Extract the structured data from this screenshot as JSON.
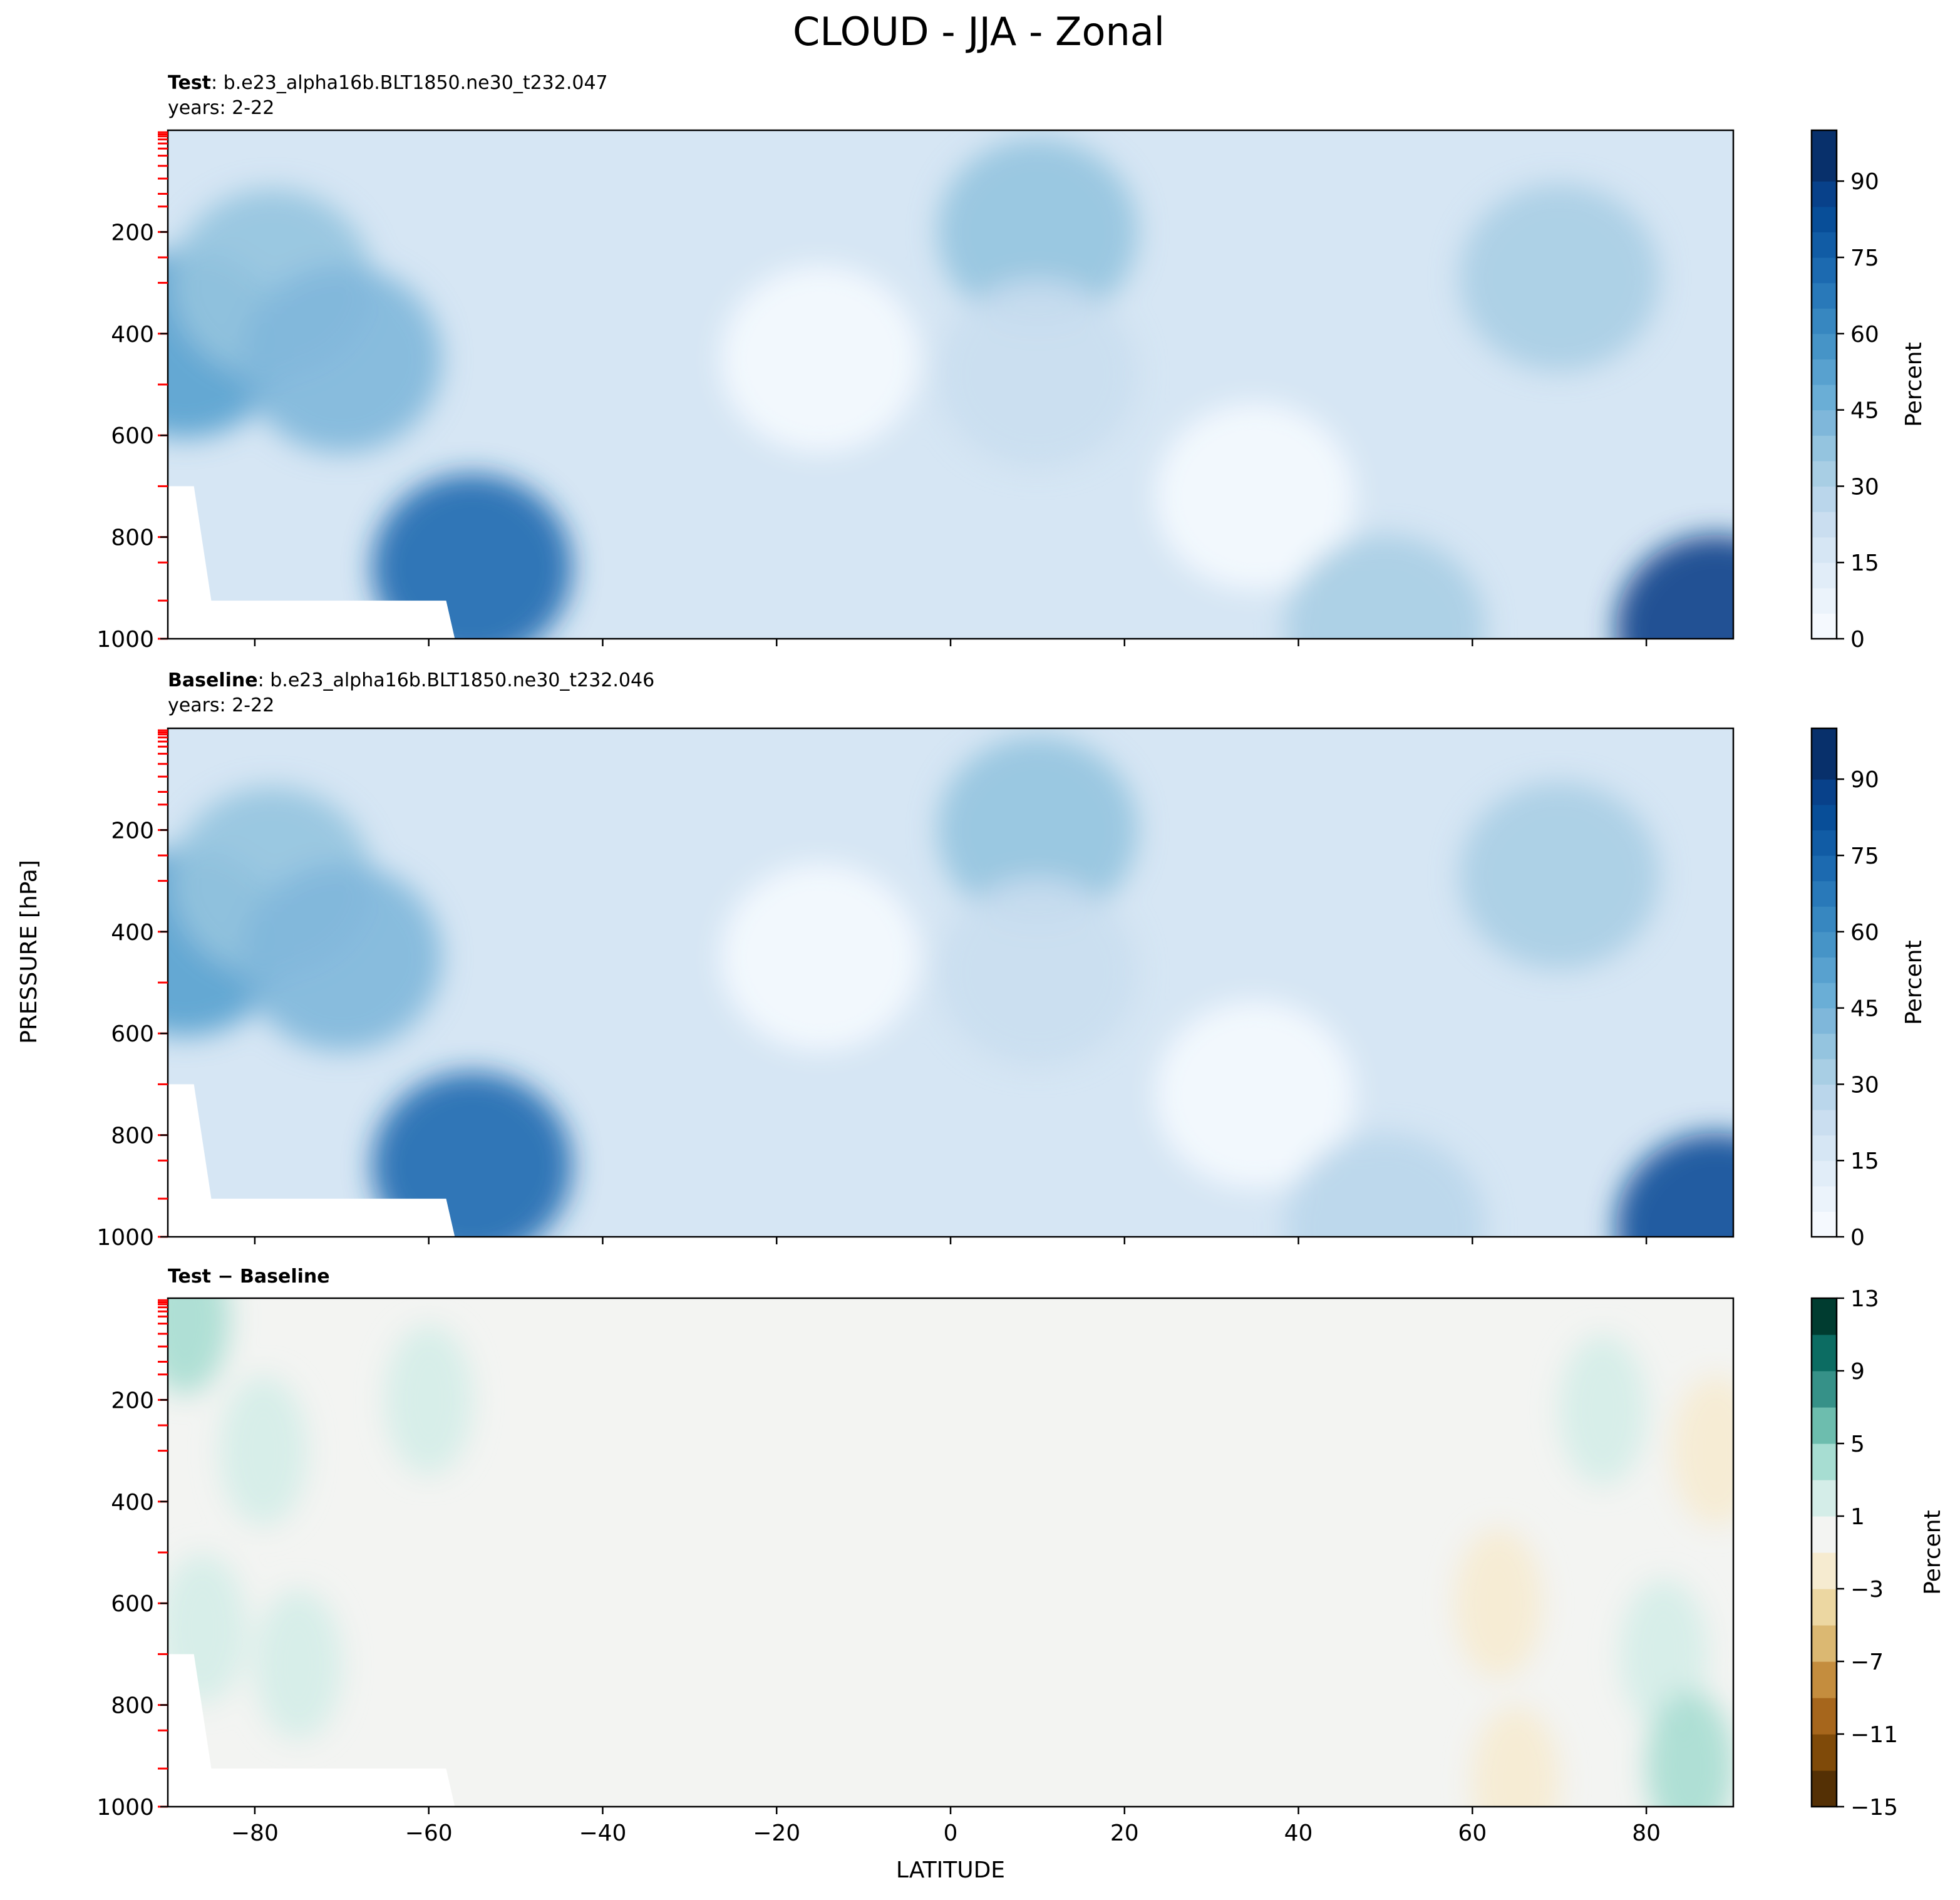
{
  "chart_data": {
    "title": "CLOUD - JJA - Zonal",
    "type": "filled-contour",
    "xlabel": "LATITUDE",
    "ylabel": "PRESSURE [hPa]",
    "xlim": [
      -90,
      90
    ],
    "ylim": [
      1000,
      0
    ],
    "x_ticks": [
      -80,
      -60,
      -40,
      -20,
      0,
      20,
      40,
      60,
      80
    ],
    "x_tick_labels": [
      "−80",
      "−60",
      "−40",
      "−20",
      "0",
      "20",
      "40",
      "60",
      "80"
    ],
    "y_ticks": [
      200,
      400,
      600,
      800,
      1000
    ],
    "y_tick_labels": [
      "200",
      "400",
      "600",
      "800",
      "1000"
    ],
    "model_levels_hPa": [
      4,
      8,
      12,
      18,
      26,
      36,
      50,
      70,
      95,
      125,
      150,
      200,
      250,
      300,
      400,
      500,
      600,
      700,
      800,
      850,
      925,
      1000
    ],
    "panels": [
      {
        "id": "test",
        "label_bold": "Test",
        "label_rest": ": b.e23_alpha16b.BLT1850.ne30_t232.047",
        "years": "years: 2-22",
        "colormap": "Blues",
        "colorbar_label": "Percent",
        "colorbar_ticks": [
          0,
          15,
          30,
          45,
          60,
          75,
          90
        ],
        "colorbar_tick_labels": [
          "0",
          "15",
          "30",
          "45",
          "60",
          "75",
          "90"
        ],
        "levels": [
          0,
          5,
          10,
          15,
          20,
          25,
          30,
          35,
          40,
          45,
          50,
          55,
          60,
          65,
          70,
          75,
          80,
          85,
          90,
          95,
          100
        ],
        "colors": [
          "#f5f9fe",
          "#ebf3fb",
          "#e1edf8",
          "#d6e6f4",
          "#cadef0",
          "#bad6eb",
          "#a8cee4",
          "#94c4df",
          "#7fb7da",
          "#6aaed6",
          "#58a1cf",
          "#4694c7",
          "#3787c0",
          "#2979b9",
          "#1c6ab0",
          "#115ca5",
          "#084e98",
          "#08418a",
          "#08306b",
          "#08306b"
        ],
        "features": [
          {
            "lat": -88,
            "p": 420,
            "value": 55
          },
          {
            "lat": -78,
            "p": 300,
            "value": 40
          },
          {
            "lat": -70,
            "p": 450,
            "value": 45
          },
          {
            "lat": -55,
            "p": 860,
            "value": 75
          },
          {
            "lat": -15,
            "p": 450,
            "value": 2
          },
          {
            "lat": 10,
            "p": 200,
            "value": 40
          },
          {
            "lat": 10,
            "p": 480,
            "value": 25
          },
          {
            "lat": 35,
            "p": 720,
            "value": 2
          },
          {
            "lat": 70,
            "p": 290,
            "value": 35
          },
          {
            "lat": 88,
            "p": 980,
            "value": 90
          },
          {
            "lat": 50,
            "p": 980,
            "value": 35
          }
        ]
      },
      {
        "id": "baseline",
        "label_bold": "Baseline",
        "label_rest": ": b.e23_alpha16b.BLT1850.ne30_t232.046",
        "years": "years: 2-22",
        "colormap": "Blues",
        "colorbar_label": "Percent",
        "colorbar_ticks": [
          0,
          15,
          30,
          45,
          60,
          75,
          90
        ],
        "colorbar_tick_labels": [
          "0",
          "15",
          "30",
          "45",
          "60",
          "75",
          "90"
        ],
        "levels": [
          0,
          5,
          10,
          15,
          20,
          25,
          30,
          35,
          40,
          45,
          50,
          55,
          60,
          65,
          70,
          75,
          80,
          85,
          90,
          95,
          100
        ],
        "colors": [
          "#f5f9fe",
          "#ebf3fb",
          "#e1edf8",
          "#d6e6f4",
          "#cadef0",
          "#bad6eb",
          "#a8cee4",
          "#94c4df",
          "#7fb7da",
          "#6aaed6",
          "#58a1cf",
          "#4694c7",
          "#3787c0",
          "#2979b9",
          "#1c6ab0",
          "#115ca5",
          "#084e98",
          "#08418a",
          "#08306b",
          "#08306b"
        ],
        "features": [
          {
            "lat": -88,
            "p": 420,
            "value": 55
          },
          {
            "lat": -78,
            "p": 300,
            "value": 40
          },
          {
            "lat": -70,
            "p": 450,
            "value": 45
          },
          {
            "lat": -55,
            "p": 860,
            "value": 75
          },
          {
            "lat": -15,
            "p": 450,
            "value": 2
          },
          {
            "lat": 10,
            "p": 200,
            "value": 40
          },
          {
            "lat": 10,
            "p": 480,
            "value": 25
          },
          {
            "lat": 35,
            "p": 720,
            "value": 2
          },
          {
            "lat": 70,
            "p": 290,
            "value": 35
          },
          {
            "lat": 88,
            "p": 980,
            "value": 85
          },
          {
            "lat": 50,
            "p": 980,
            "value": 30
          }
        ]
      },
      {
        "id": "diff",
        "label_bold": "Test − Baseline",
        "label_rest": "",
        "years": "",
        "colormap": "BrBG",
        "colorbar_label": "Percent",
        "colorbar_ticks": [
          -15,
          -11,
          -7,
          -3,
          1,
          5,
          9,
          13
        ],
        "colorbar_tick_labels": [
          "−15",
          "−11",
          "−7",
          "−3",
          "1",
          "5",
          "9",
          "13"
        ],
        "levels": [
          -15,
          -13,
          -11,
          -9,
          -7,
          -5,
          -3,
          -1,
          1,
          3,
          5,
          7,
          9,
          11,
          13
        ],
        "colors": [
          "#543005",
          "#7f4a09",
          "#a6661c",
          "#c48d3e",
          "#dbb872",
          "#ecd7a2",
          "#f6ebd0",
          "#f3f4f2",
          "#d4ede8",
          "#a7ddd2",
          "#6dbdae",
          "#369188",
          "#0c6c62",
          "#003c30"
        ],
        "features": [
          {
            "lat": -88,
            "p": 40,
            "value": 4
          },
          {
            "lat": -79,
            "p": 300,
            "value": 2
          },
          {
            "lat": -75,
            "p": 720,
            "value": 2
          },
          {
            "lat": -86,
            "p": 650,
            "value": 1.5
          },
          {
            "lat": -60,
            "p": 200,
            "value": 2
          },
          {
            "lat": 63,
            "p": 600,
            "value": -2
          },
          {
            "lat": 65,
            "p": 950,
            "value": -2
          },
          {
            "lat": 75,
            "p": 220,
            "value": 2
          },
          {
            "lat": 82,
            "p": 700,
            "value": 2
          },
          {
            "lat": 85,
            "p": 920,
            "value": 5
          },
          {
            "lat": 88,
            "p": 300,
            "value": -2
          }
        ]
      }
    ]
  }
}
